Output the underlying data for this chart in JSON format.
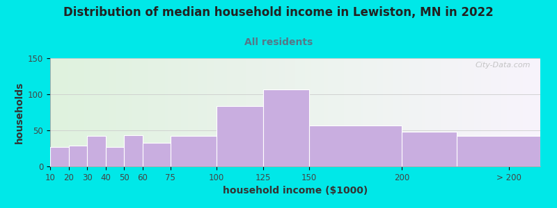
{
  "title": "Distribution of median household income in Lewiston, MN in 2022",
  "subtitle": "All residents",
  "xlabel": "household income ($1000)",
  "ylabel": "households",
  "bar_color": "#c9aee0",
  "bar_edgecolor": "#ffffff",
  "background_outer": "#00e8e8",
  "ylim": [
    0,
    150
  ],
  "yticks": [
    0,
    50,
    100,
    150
  ],
  "categories": [
    "10",
    "20",
    "30",
    "40",
    "50",
    "60",
    "75",
    "100",
    "125",
    "150",
    "200",
    "> 200"
  ],
  "values": [
    27,
    29,
    42,
    27,
    43,
    33,
    42,
    84,
    107,
    57,
    48,
    42
  ],
  "title_fontsize": 12,
  "subtitle_fontsize": 10,
  "axis_label_fontsize": 10,
  "tick_fontsize": 8.5,
  "watermark_text": "City-Data.com",
  "bar_left_edges": [
    10,
    20,
    30,
    40,
    50,
    60,
    75,
    100,
    125,
    150,
    200,
    230
  ],
  "bar_widths": [
    10,
    10,
    10,
    10,
    10,
    15,
    25,
    25,
    25,
    50,
    30,
    45
  ],
  "xlim": [
    10,
    275
  ],
  "xtick_positions": [
    10,
    20,
    30,
    40,
    50,
    60,
    75,
    100,
    125,
    150,
    200,
    258
  ]
}
